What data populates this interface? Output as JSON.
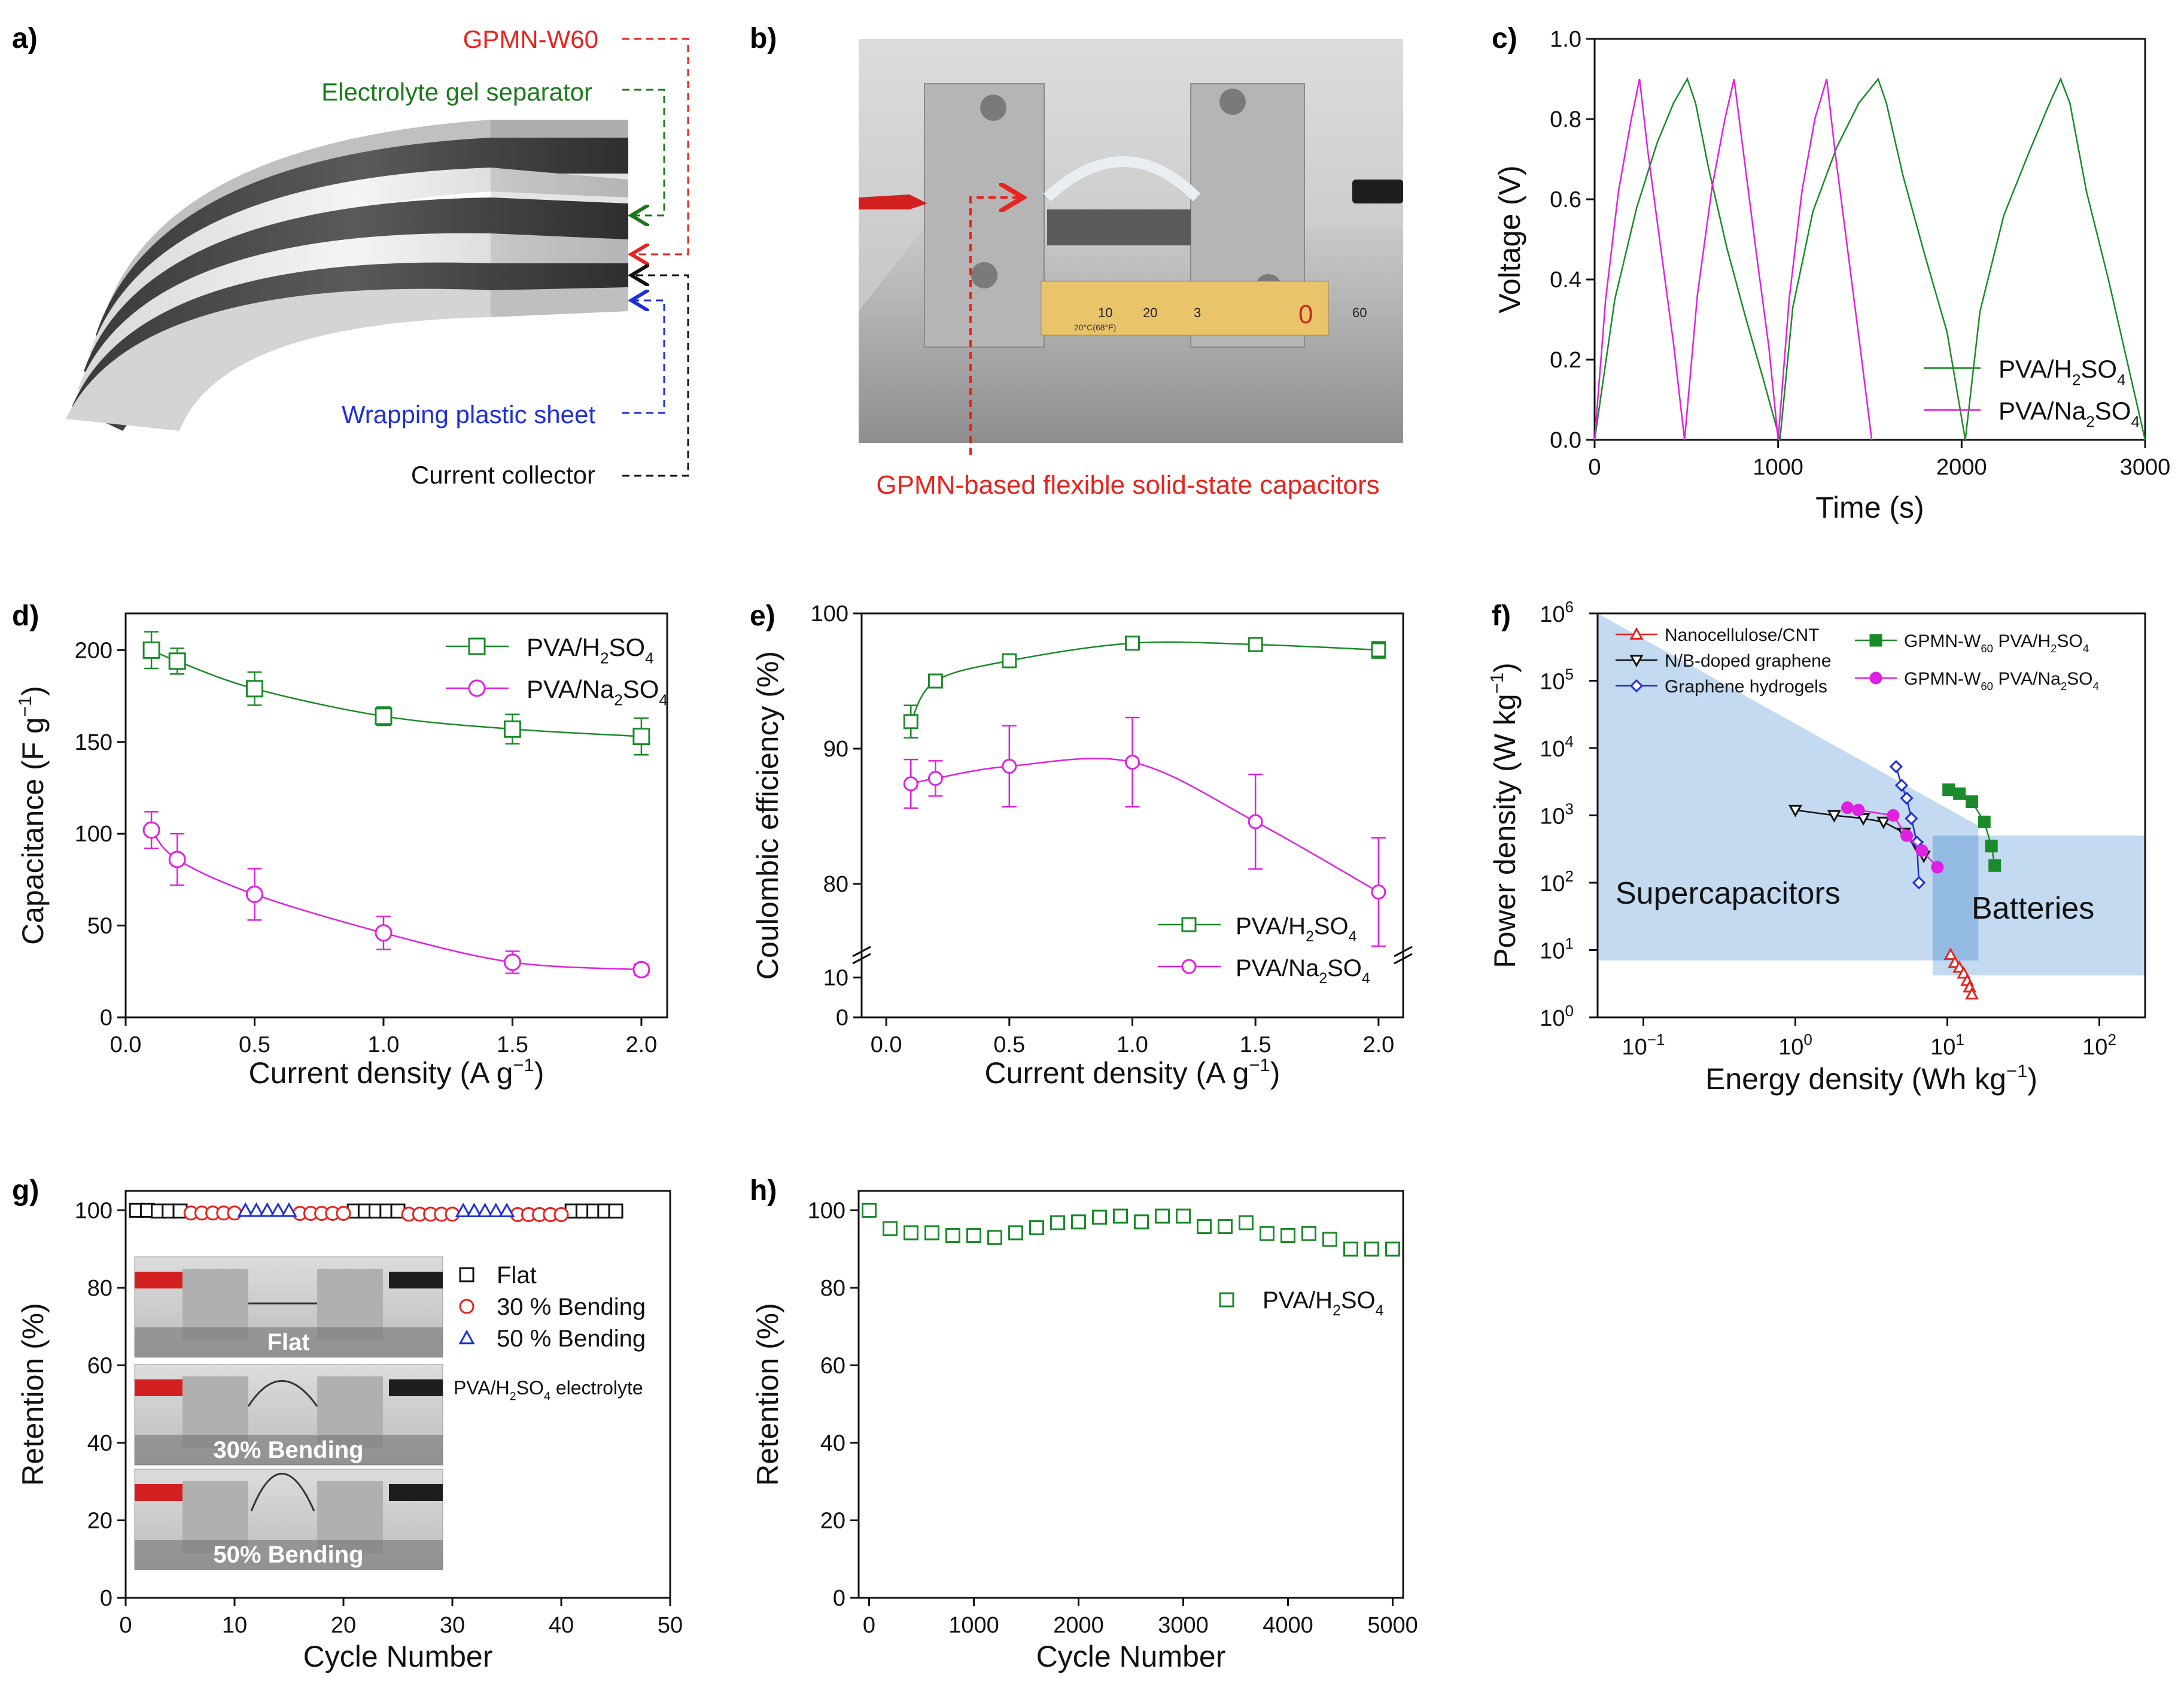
{
  "panels": {
    "a": {
      "label": "a)",
      "callouts": [
        {
          "text": "GPMN-W60",
          "color": "#e8231f"
        },
        {
          "text": "Electrolyte gel separator",
          "color": "#1a7a1a"
        },
        {
          "text": "Wrapping plastic sheet",
          "color": "#1f2fd8"
        },
        {
          "text": "Current collector",
          "color": "#111111"
        }
      ]
    },
    "b": {
      "label": "b)",
      "caption": "GPMN-based flexible solid-state capacitors",
      "caption_color": "#e8231f",
      "ruler_ticks": [
        "10",
        "20",
        "3",
        "0",
        "60"
      ],
      "ruler_note": "20°C(68°F)"
    },
    "c": {
      "label": "c)"
    },
    "d": {
      "label": "d)"
    },
    "e": {
      "label": "e)"
    },
    "f": {
      "label": "f)",
      "region_supercap": "Supercapacitors",
      "region_batteries": "Batteries"
    },
    "g": {
      "label": "g)",
      "electrolyte_note": "PVA/H2SO4 electrolyte",
      "photo_labels": [
        "Flat",
        "30% Bending",
        "50% Bending"
      ]
    },
    "h": {
      "label": "h)"
    }
  },
  "colors": {
    "green": "#1a8a2a",
    "magenta": "#e020e0",
    "red": "#e8231f",
    "blue": "#1f2fd8",
    "black": "#111111",
    "region_blue": "#b8d4ee",
    "region_blue_dark": "#7aa8d8"
  },
  "chart_data": [
    {
      "id": "c",
      "type": "line",
      "xlabel": "Time (s)",
      "ylabel": "Voltage (V)",
      "xlim": [
        0,
        3000
      ],
      "ylim": [
        0,
        1.0
      ],
      "xticks": [
        0,
        1000,
        2000,
        3000
      ],
      "yticks": [
        0.0,
        0.2,
        0.4,
        0.6,
        0.8,
        1.0
      ],
      "series": [
        {
          "name": "PVA/H2SO4",
          "color": "#1a8a2a",
          "x": [
            0,
            110,
            230,
            340,
            430,
            505,
            550,
            620,
            720,
            820,
            920,
            1010,
            1080,
            1190,
            1320,
            1440,
            1545,
            1590,
            1680,
            1800,
            1920,
            2020,
            2100,
            2230,
            2370,
            2480,
            2540,
            2590,
            2680,
            2800,
            2910,
            3000
          ],
          "y": [
            0,
            0.35,
            0.58,
            0.74,
            0.84,
            0.9,
            0.84,
            0.68,
            0.48,
            0.31,
            0.15,
            0.0,
            0.33,
            0.57,
            0.73,
            0.84,
            0.9,
            0.84,
            0.66,
            0.46,
            0.27,
            0.0,
            0.32,
            0.56,
            0.72,
            0.84,
            0.9,
            0.84,
            0.62,
            0.4,
            0.18,
            0.0
          ]
        },
        {
          "name": "PVA/Na2SO4",
          "color": "#e020e0",
          "x": [
            0,
            60,
            130,
            200,
            245,
            290,
            360,
            430,
            490,
            560,
            640,
            710,
            760,
            810,
            880,
            950,
            1000,
            1060,
            1130,
            1200,
            1265,
            1310,
            1380,
            1450,
            1510
          ],
          "y": [
            0,
            0.35,
            0.62,
            0.8,
            0.9,
            0.72,
            0.48,
            0.24,
            0.0,
            0.36,
            0.63,
            0.8,
            0.9,
            0.72,
            0.47,
            0.23,
            0.0,
            0.35,
            0.62,
            0.8,
            0.9,
            0.72,
            0.47,
            0.22,
            0.0
          ]
        }
      ],
      "legend": [
        "PVA/H2SO4",
        "PVA/Na2SO4"
      ]
    },
    {
      "id": "d",
      "type": "scatter",
      "xlabel": "Current density (A g-1)",
      "ylabel": "Capacitance (F g-1)",
      "xlim": [
        0,
        2.1
      ],
      "ylim": [
        0,
        220
      ],
      "xticks": [
        0.0,
        0.5,
        1.0,
        1.5,
        2.0
      ],
      "yticks": [
        0,
        50,
        100,
        150,
        200
      ],
      "series": [
        {
          "name": "PVA/H2SO4",
          "color": "#1a8a2a",
          "marker": "square",
          "x": [
            0.1,
            0.2,
            0.5,
            1.0,
            1.5,
            2.0
          ],
          "y": [
            200,
            194,
            179,
            164,
            157,
            153
          ],
          "err": [
            10,
            7,
            9,
            5,
            8,
            10
          ]
        },
        {
          "name": "PVA/Na2SO4",
          "color": "#e020e0",
          "marker": "circle",
          "x": [
            0.1,
            0.2,
            0.5,
            1.0,
            1.5,
            2.0
          ],
          "y": [
            102,
            86,
            67,
            46,
            30,
            26
          ],
          "err": [
            10,
            14,
            14,
            9,
            6,
            3
          ]
        }
      ],
      "legend": [
        "PVA/H2SO4",
        "PVA/Na2SO4"
      ]
    },
    {
      "id": "e",
      "type": "scatter",
      "xlabel": "Current density (A g-1)",
      "ylabel": "Coulombic efficiency (%)",
      "xlim": [
        -0.1,
        2.1
      ],
      "ylim_upper": [
        75,
        100
      ],
      "ylim_lower": [
        0,
        15
      ],
      "xticks": [
        0.0,
        0.5,
        1.0,
        1.5,
        2.0
      ],
      "yticks": [
        0,
        10,
        80,
        90,
        100
      ],
      "series": [
        {
          "name": "PVA/H2SO4",
          "color": "#1a8a2a",
          "marker": "square",
          "x": [
            0.1,
            0.2,
            0.5,
            1.0,
            1.5,
            2.0
          ],
          "y": [
            92.0,
            95.0,
            96.5,
            97.8,
            97.7,
            97.3
          ],
          "err": [
            1.2,
            0.3,
            0.4,
            0.4,
            0.5,
            0.6
          ]
        },
        {
          "name": "PVA/Na2SO4",
          "color": "#e020e0",
          "marker": "circle",
          "x": [
            0.1,
            0.2,
            0.5,
            1.0,
            1.5,
            2.0
          ],
          "y": [
            87.4,
            87.8,
            88.7,
            89.0,
            84.6,
            79.4
          ],
          "err": [
            1.8,
            1.3,
            3.0,
            3.3,
            3.5,
            4.0
          ]
        }
      ],
      "legend": [
        "PVA/H2SO4",
        "PVA/Na2SO4"
      ]
    },
    {
      "id": "f",
      "type": "scatter",
      "xlabel": "Energy density (Wh kg-1)",
      "ylabel": "Power density (W kg-1)",
      "xscale": "log",
      "yscale": "log",
      "xlim": [
        0.05,
        200
      ],
      "ylim": [
        1,
        1000000
      ],
      "xtick_exps": [
        -1,
        0,
        1,
        2
      ],
      "ytick_exps": [
        0,
        1,
        2,
        3,
        4,
        5,
        6
      ],
      "series": [
        {
          "name": "Nanocellulose/CNT",
          "color": "#e8231f",
          "marker": "triangle-open",
          "x": [
            10.5,
            11.2,
            12.0,
            12.8,
            13.5,
            14.0,
            14.5
          ],
          "y": [
            8.5,
            6.5,
            5.5,
            4.5,
            3.5,
            2.8,
            2.2
          ]
        },
        {
          "name": "N/B-doped graphene",
          "color": "#111111",
          "marker": "triangle-down-open",
          "x": [
            1.0,
            1.8,
            2.8,
            3.8,
            5.2,
            6.3,
            7.0
          ],
          "y": [
            1200,
            1000,
            900,
            800,
            550,
            350,
            250
          ]
        },
        {
          "name": "Graphene hydrogels",
          "color": "#1f2fd8",
          "marker": "diamond-open",
          "x": [
            4.6,
            5.0,
            5.4,
            5.8,
            6.3,
            6.5
          ],
          "y": [
            5300,
            2800,
            1800,
            900,
            400,
            100
          ]
        },
        {
          "name": "GPMN-W60 PVA/H2SO4",
          "color": "#1a8a2a",
          "marker": "square",
          "x": [
            10.2,
            12.0,
            14.5,
            17.5,
            19.5,
            20.5
          ],
          "y": [
            2400,
            2100,
            1600,
            800,
            350,
            180
          ]
        },
        {
          "name": "GPMN-W60 PVA/Na2SO4",
          "color": "#e020e0",
          "marker": "circle",
          "x": [
            2.2,
            2.6,
            4.4,
            5.4,
            6.8,
            8.6
          ],
          "y": [
            1300,
            1200,
            1000,
            500,
            300,
            170
          ]
        }
      ],
      "legend": [
        "Nanocellulose/CNT",
        "N/B-doped graphene",
        "Graphene hydrogels",
        "GPMN-W60 PVA/H2SO4",
        "GPMN-W60 PVA/Na2SO4"
      ]
    },
    {
      "id": "g",
      "type": "scatter",
      "xlabel": "Cycle Number",
      "ylabel": "Retention (%)",
      "xlim": [
        0,
        50
      ],
      "ylim": [
        0,
        105
      ],
      "xticks": [
        0,
        10,
        20,
        30,
        40,
        50
      ],
      "yticks": [
        0,
        20,
        40,
        60,
        80,
        100
      ],
      "series": [
        {
          "name": "Flat",
          "color": "#111111",
          "marker": "square-open",
          "x": [
            1,
            2,
            3,
            4,
            5,
            21,
            22,
            23,
            24,
            25,
            41,
            42,
            43,
            44,
            45
          ],
          "y": [
            100,
            100,
            99.8,
            99.8,
            99.8,
            99.8,
            99.8,
            99.8,
            99.8,
            99.8,
            99.8,
            99.8,
            99.8,
            99.8,
            99.8
          ]
        },
        {
          "name": "30 % Bending",
          "color": "#e8231f",
          "marker": "circle-open",
          "x": [
            6,
            7,
            8,
            9,
            10,
            16,
            17,
            18,
            19,
            20,
            26,
            27,
            28,
            29,
            30,
            36,
            37,
            38,
            39,
            40
          ],
          "y": [
            99.3,
            99.3,
            99.3,
            99.3,
            99.3,
            99.2,
            99.2,
            99.2,
            99.2,
            99.2,
            99.0,
            99.0,
            99.0,
            99.0,
            99.0,
            98.9,
            98.9,
            98.9,
            98.9,
            98.9
          ]
        },
        {
          "name": "50 % Bending",
          "color": "#1f2fd8",
          "marker": "triangle-open",
          "x": [
            11,
            12,
            13,
            14,
            15,
            31,
            32,
            33,
            34,
            35
          ],
          "y": [
            99.9,
            99.9,
            99.9,
            99.9,
            99.9,
            99.8,
            99.8,
            99.8,
            99.8,
            99.8
          ]
        }
      ],
      "legend": [
        "Flat",
        "30 % Bending",
        "50 % Bending"
      ]
    },
    {
      "id": "h",
      "type": "scatter",
      "xlabel": "Cycle Number",
      "ylabel": "Retention (%)",
      "xlim": [
        -100,
        5100
      ],
      "ylim": [
        0,
        105
      ],
      "xticks": [
        0,
        1000,
        2000,
        3000,
        4000,
        5000
      ],
      "yticks": [
        0,
        20,
        40,
        60,
        80,
        100
      ],
      "series": [
        {
          "name": "PVA/H2SO4",
          "color": "#1a8a2a",
          "marker": "square-open",
          "x": [
            0,
            200,
            400,
            600,
            800,
            1000,
            1200,
            1400,
            1600,
            1800,
            2000,
            2200,
            2400,
            2600,
            2800,
            3000,
            3200,
            3400,
            3600,
            3800,
            4000,
            4200,
            4400,
            4600,
            4800,
            5000
          ],
          "y": [
            100,
            95.3,
            94.2,
            94.2,
            93.5,
            93.5,
            93.0,
            94.2,
            95.5,
            96.8,
            97.0,
            98.2,
            98.5,
            97.0,
            98.5,
            98.5,
            95.8,
            95.8,
            96.8,
            94.0,
            93.5,
            94.0,
            92.5,
            90.0,
            90.0,
            90.0
          ]
        }
      ],
      "legend": [
        "PVA/H2SO4"
      ]
    }
  ]
}
